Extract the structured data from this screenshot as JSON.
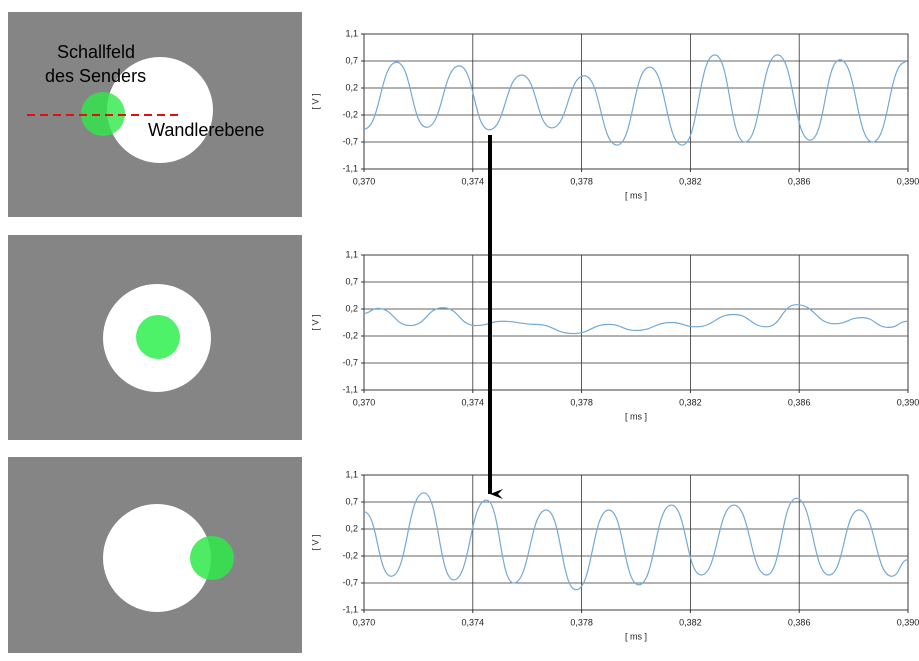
{
  "annotations": [
    "Schallfeld",
    "des Senders",
    "Wandlerebene"
  ],
  "chart_data": [
    {
      "type": "line",
      "xlabel": "[ ms ]",
      "ylabel": "[ V ]",
      "color": "#74a9d6",
      "grid": true,
      "xlim": [
        0.37,
        0.39
      ],
      "ylim": [
        -1.1,
        1.1
      ],
      "xticks": [
        {
          "value": 0.37,
          "label": "0,370"
        },
        {
          "value": 0.374,
          "label": "0,374"
        },
        {
          "value": 0.378,
          "label": "0,378"
        },
        {
          "value": 0.382,
          "label": "0,382"
        },
        {
          "value": 0.386,
          "label": "0,386"
        },
        {
          "value": 0.39,
          "label": "0,390"
        }
      ],
      "yticks": [
        {
          "value": 1.1,
          "label": "1,1"
        },
        {
          "value": 0.66,
          "label": "0,7"
        },
        {
          "value": 0.22,
          "label": "0,2"
        },
        {
          "value": -0.22,
          "label": "-0,2"
        },
        {
          "value": -0.66,
          "label": "-0,7"
        },
        {
          "value": -1.1,
          "label": "-1,1"
        }
      ],
      "x": [
        0.37,
        0.3712,
        0.3723,
        0.3735,
        0.3746,
        0.3758,
        0.3769,
        0.3781,
        0.3793,
        0.3805,
        0.3817,
        0.3829,
        0.384,
        0.3852,
        0.3864,
        0.3875,
        0.3887,
        0.3899
      ],
      "values": [
        -0.45,
        0.64,
        -0.42,
        0.58,
        -0.46,
        0.43,
        -0.43,
        0.42,
        -0.71,
        0.56,
        -0.71,
        0.76,
        -0.66,
        0.76,
        -0.63,
        0.68,
        -0.66,
        0.64
      ]
    },
    {
      "type": "line",
      "xlabel": "[ ms ]",
      "ylabel": "[ V ]",
      "color": "#74a9d6",
      "grid": true,
      "xlim": [
        0.37,
        0.39
      ],
      "ylim": [
        -1.1,
        1.1
      ],
      "xticks": [
        {
          "value": 0.37,
          "label": "0,370"
        },
        {
          "value": 0.374,
          "label": "0,374"
        },
        {
          "value": 0.378,
          "label": "0,378"
        },
        {
          "value": 0.382,
          "label": "0,382"
        },
        {
          "value": 0.386,
          "label": "0,386"
        },
        {
          "value": 0.39,
          "label": "0,390"
        }
      ],
      "yticks": [
        {
          "value": 1.1,
          "label": "1,1"
        },
        {
          "value": 0.66,
          "label": "0,7"
        },
        {
          "value": 0.22,
          "label": "0,2"
        },
        {
          "value": -0.22,
          "label": "-0,2"
        },
        {
          "value": -0.66,
          "label": "-0,7"
        },
        {
          "value": -1.1,
          "label": "-1,1"
        }
      ],
      "x": [
        0.37,
        0.3705,
        0.3717,
        0.3729,
        0.3741,
        0.3751,
        0.3763,
        0.3777,
        0.379,
        0.38,
        0.3813,
        0.3822,
        0.3836,
        0.3848,
        0.3859,
        0.3873,
        0.3883,
        0.3893,
        0.39
      ],
      "values": [
        0.15,
        0.23,
        -0.05,
        0.24,
        -0.05,
        0.02,
        -0.03,
        -0.18,
        -0.03,
        -0.13,
        0,
        -0.07,
        0.13,
        -0.07,
        0.29,
        -0.02,
        0.08,
        -0.08,
        0.02
      ]
    },
    {
      "type": "line",
      "xlabel": "[ ms ]",
      "ylabel": "[ V ]",
      "color": "#74a9d6",
      "grid": true,
      "xlim": [
        0.37,
        0.39
      ],
      "ylim": [
        -1.1,
        1.1
      ],
      "xticks": [
        {
          "value": 0.37,
          "label": "0,370"
        },
        {
          "value": 0.374,
          "label": "0,374"
        },
        {
          "value": 0.378,
          "label": "0,378"
        },
        {
          "value": 0.382,
          "label": "0,382"
        },
        {
          "value": 0.386,
          "label": "0,386"
        },
        {
          "value": 0.39,
          "label": "0,390"
        }
      ],
      "yticks": [
        {
          "value": 1.1,
          "label": "1,1"
        },
        {
          "value": 0.66,
          "label": "0,7"
        },
        {
          "value": 0.22,
          "label": "0,2"
        },
        {
          "value": -0.22,
          "label": "-0,2"
        },
        {
          "value": -0.66,
          "label": "-0,7"
        },
        {
          "value": -1.1,
          "label": "-1,1"
        }
      ],
      "x": [
        0.37,
        0.371,
        0.3722,
        0.3733,
        0.3745,
        0.3755,
        0.3767,
        0.3778,
        0.379,
        0.3801,
        0.3813,
        0.3824,
        0.3836,
        0.3848,
        0.3859,
        0.3871,
        0.3882,
        0.3894,
        0.39
      ],
      "values": [
        0.5,
        -0.55,
        0.81,
        -0.61,
        0.69,
        -0.66,
        0.53,
        -0.77,
        0.53,
        -0.69,
        0.61,
        -0.53,
        0.61,
        -0.53,
        0.72,
        -0.53,
        0.53,
        -0.55,
        -0.28
      ]
    }
  ]
}
